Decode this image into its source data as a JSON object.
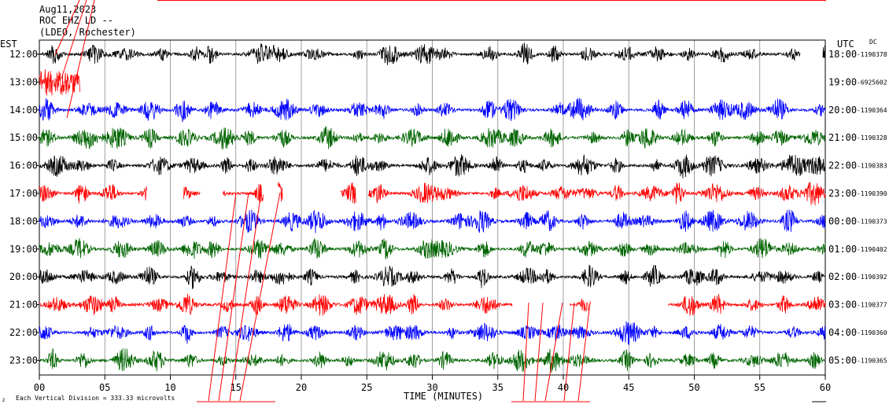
{
  "header": {
    "date": "Aug11,2023",
    "station": "ROC EHZ LD --",
    "network": "(LDEO, Rochester)"
  },
  "left_axis_label": "EST",
  "right_axis_label": "UTC",
  "dc_label": "DC",
  "footer": {
    "scale_note": "Each Vertical Division =  333.33 microvolts",
    "corner_mark": "ᴊ"
  },
  "colors": {
    "black": "#000000",
    "red": "#ff0000",
    "blue": "#0000ff",
    "green": "#006400",
    "grid": "#888888"
  },
  "chart_data": {
    "type": "line",
    "title": "",
    "xlabel": "TIME (MINUTES)",
    "ylabel": "",
    "xlim": [
      0,
      60
    ],
    "x_ticks": [
      "00",
      "05",
      "10",
      "15",
      "20",
      "25",
      "30",
      "35",
      "40",
      "45",
      "50",
      "55",
      "60"
    ],
    "rows": [
      {
        "est": "12:00",
        "utc": "18:00",
        "dc": "-1190378",
        "color": "black"
      },
      {
        "est": "13:00",
        "utc": "19:00",
        "dc": "-6925602",
        "color": "red"
      },
      {
        "est": "14:00",
        "utc": "20:00",
        "dc": "-1190364",
        "color": "blue"
      },
      {
        "est": "15:00",
        "utc": "21:00",
        "dc": "-1190328",
        "color": "green"
      },
      {
        "est": "16:00",
        "utc": "22:00",
        "dc": "-1190383",
        "color": "black"
      },
      {
        "est": "17:00",
        "utc": "23:00",
        "dc": "-1190390",
        "color": "red"
      },
      {
        "est": "18:00",
        "utc": "00:00",
        "dc": "-1190373",
        "color": "blue"
      },
      {
        "est": "19:00",
        "utc": "01:00",
        "dc": "-1190402",
        "color": "green"
      },
      {
        "est": "20:00",
        "utc": "02:00",
        "dc": "-1190392",
        "color": "black"
      },
      {
        "est": "21:00",
        "utc": "03:00",
        "dc": "-1190377",
        "color": "red"
      },
      {
        "est": "22:00",
        "utc": "04:00",
        "dc": "-1190360",
        "color": "blue"
      },
      {
        "est": "23:00",
        "utc": "05:00",
        "dc": "-1190365",
        "color": "green"
      }
    ]
  }
}
